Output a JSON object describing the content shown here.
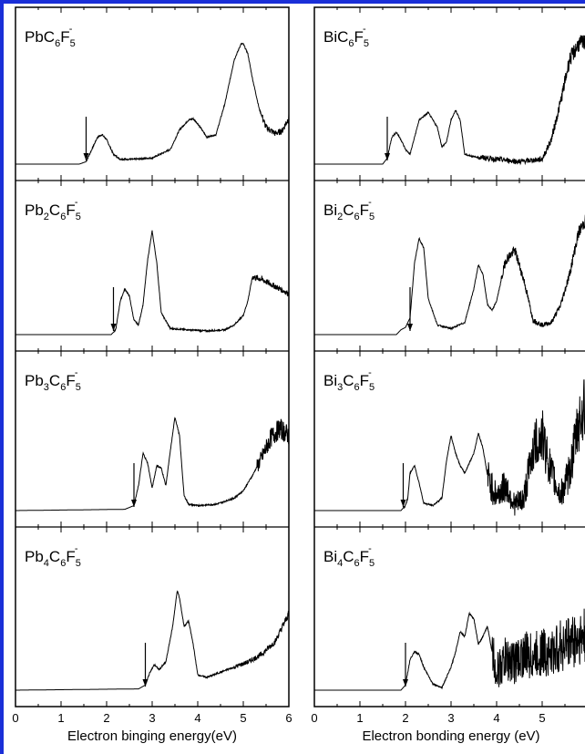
{
  "chart_data": [
    {
      "type": "line",
      "panel": "left",
      "label": {
        "base": "Pb",
        "n": "",
        "c": "6",
        "f": "5"
      },
      "x": [
        0,
        1.4,
        1.55,
        1.7,
        1.8,
        1.9,
        2.0,
        2.15,
        2.3,
        2.6,
        3.0,
        3.4,
        3.6,
        3.8,
        3.9,
        4.0,
        4.2,
        4.4,
        4.6,
        4.8,
        4.95,
        5.0,
        5.1,
        5.2,
        5.35,
        5.5,
        5.7,
        5.85,
        6.0
      ],
      "y": [
        0.0,
        0.0,
        0.02,
        0.14,
        0.22,
        0.24,
        0.2,
        0.08,
        0.04,
        0.04,
        0.05,
        0.12,
        0.28,
        0.36,
        0.37,
        0.33,
        0.22,
        0.24,
        0.5,
        0.85,
        0.98,
        0.98,
        0.9,
        0.7,
        0.45,
        0.3,
        0.25,
        0.27,
        0.38
      ],
      "threshold": 1.55,
      "noise_from": 5.4,
      "noise_amp": 0.04
    },
    {
      "type": "line",
      "panel": "left",
      "label": {
        "base": "Pb",
        "n": "2",
        "c": "6",
        "f": "5"
      },
      "x": [
        0,
        2.1,
        2.2,
        2.3,
        2.4,
        2.5,
        2.6,
        2.7,
        2.8,
        2.9,
        3.0,
        3.1,
        3.2,
        3.4,
        3.8,
        4.2,
        4.6,
        4.8,
        5.0,
        5.1,
        5.2,
        5.4,
        5.6,
        5.8,
        6.0
      ],
      "y": [
        0.0,
        0.0,
        0.04,
        0.28,
        0.38,
        0.32,
        0.12,
        0.08,
        0.25,
        0.62,
        0.86,
        0.6,
        0.18,
        0.05,
        0.04,
        0.03,
        0.04,
        0.08,
        0.16,
        0.28,
        0.48,
        0.46,
        0.42,
        0.38,
        0.34
      ],
      "threshold": 2.15,
      "noise_from": 5.2,
      "noise_amp": 0.03
    },
    {
      "type": "line",
      "panel": "left",
      "label": {
        "base": "Pb",
        "n": "3",
        "c": "6",
        "f": "5"
      },
      "x": [
        0,
        2.4,
        2.6,
        2.7,
        2.8,
        2.9,
        3.0,
        3.1,
        3.2,
        3.3,
        3.4,
        3.5,
        3.6,
        3.7,
        3.8,
        4.0,
        4.4,
        4.8,
        5.0,
        5.2,
        5.4,
        5.6,
        5.8,
        6.0
      ],
      "y": [
        0.0,
        0.01,
        0.04,
        0.2,
        0.46,
        0.38,
        0.18,
        0.36,
        0.34,
        0.2,
        0.48,
        0.75,
        0.6,
        0.12,
        0.05,
        0.04,
        0.05,
        0.1,
        0.16,
        0.28,
        0.42,
        0.58,
        0.66,
        0.6
      ],
      "threshold": 2.6,
      "noise_from": 5.3,
      "noise_amp": 0.08
    },
    {
      "type": "line",
      "panel": "left",
      "label": {
        "base": "Pb",
        "n": "4",
        "c": "6",
        "f": "5"
      },
      "x": [
        0,
        2.7,
        2.85,
        2.95,
        3.05,
        3.15,
        3.3,
        3.45,
        3.55,
        3.6,
        3.7,
        3.8,
        3.9,
        4.0,
        4.2,
        4.5,
        4.8,
        5.1,
        5.4,
        5.7,
        6.0
      ],
      "y": [
        0.0,
        0.01,
        0.04,
        0.14,
        0.2,
        0.16,
        0.22,
        0.5,
        0.78,
        0.72,
        0.5,
        0.54,
        0.36,
        0.12,
        0.1,
        0.14,
        0.18,
        0.22,
        0.28,
        0.38,
        0.6
      ],
      "threshold": 2.85,
      "noise_from": 4.8,
      "noise_amp": 0.03
    },
    {
      "type": "line",
      "panel": "right",
      "label": {
        "base": "Bi",
        "n": "",
        "c": "6",
        "f": "5"
      },
      "x": [
        0,
        1.5,
        1.6,
        1.7,
        1.8,
        1.9,
        2.0,
        2.1,
        2.3,
        2.5,
        2.7,
        2.8,
        2.9,
        3.0,
        3.1,
        3.2,
        3.3,
        3.5,
        4.0,
        4.5,
        5.0,
        5.2,
        5.4,
        5.6,
        5.8,
        6.0
      ],
      "y": [
        0.0,
        0.0,
        0.05,
        0.22,
        0.26,
        0.2,
        0.12,
        0.08,
        0.36,
        0.42,
        0.3,
        0.14,
        0.18,
        0.36,
        0.44,
        0.36,
        0.08,
        0.06,
        0.04,
        0.02,
        0.04,
        0.2,
        0.5,
        0.85,
        0.98,
        1.0
      ],
      "threshold": 1.6,
      "noise_from": 3.6,
      "noise_amp": 0.05
    },
    {
      "type": "line",
      "panel": "right",
      "label": {
        "base": "Bi",
        "n": "2",
        "c": "6",
        "f": "5"
      },
      "x": [
        0,
        1.8,
        1.9,
        2.0,
        2.1,
        2.2,
        2.3,
        2.4,
        2.5,
        2.7,
        3.0,
        3.3,
        3.5,
        3.6,
        3.7,
        3.8,
        3.9,
        4.0,
        4.2,
        4.4,
        4.6,
        4.8,
        5.0,
        5.2,
        5.4,
        5.6,
        5.8,
        6.0
      ],
      "y": [
        0.0,
        0.0,
        0.04,
        0.06,
        0.14,
        0.6,
        0.8,
        0.72,
        0.3,
        0.08,
        0.05,
        0.1,
        0.38,
        0.58,
        0.5,
        0.25,
        0.2,
        0.28,
        0.62,
        0.7,
        0.45,
        0.12,
        0.08,
        0.1,
        0.24,
        0.5,
        0.85,
        0.98
      ],
      "threshold": 2.1,
      "noise_from": 4.1,
      "noise_amp": 0.04
    },
    {
      "type": "line",
      "panel": "right",
      "label": {
        "base": "Bi",
        "n": "3",
        "c": "6",
        "f": "5"
      },
      "x": [
        0,
        1.9,
        2.0,
        2.05,
        2.1,
        2.2,
        2.3,
        2.4,
        2.6,
        2.8,
        2.9,
        3.0,
        3.1,
        3.2,
        3.3,
        3.5,
        3.6,
        3.7,
        3.8,
        3.9,
        4.0,
        4.2,
        4.4,
        4.6,
        4.8,
        5.0,
        5.2,
        5.4,
        5.6,
        5.8,
        6.0
      ],
      "y": [
        0.0,
        0.0,
        0.04,
        0.1,
        0.3,
        0.36,
        0.22,
        0.06,
        0.04,
        0.1,
        0.4,
        0.6,
        0.46,
        0.36,
        0.3,
        0.46,
        0.62,
        0.5,
        0.28,
        0.18,
        0.12,
        0.2,
        0.04,
        0.1,
        0.5,
        0.6,
        0.3,
        0.12,
        0.3,
        0.7,
        0.9
      ],
      "threshold": 1.95,
      "noise_from": 3.8,
      "noise_amp": 0.22
    },
    {
      "type": "line",
      "panel": "right",
      "label": {
        "base": "Bi",
        "n": "4",
        "c": "6",
        "f": "5"
      },
      "x": [
        0,
        1.9,
        2.0,
        2.1,
        2.2,
        2.3,
        2.4,
        2.6,
        2.8,
        3.0,
        3.1,
        3.2,
        3.3,
        3.4,
        3.5,
        3.6,
        3.7,
        3.8,
        3.9,
        4.0,
        4.2,
        4.4,
        4.6,
        4.8,
        5.0,
        5.2,
        5.4,
        5.6,
        5.8,
        6.0
      ],
      "y": [
        0.0,
        0.0,
        0.04,
        0.24,
        0.3,
        0.28,
        0.18,
        0.05,
        0.02,
        0.18,
        0.3,
        0.46,
        0.42,
        0.6,
        0.56,
        0.36,
        0.42,
        0.5,
        0.3,
        0.14,
        0.24,
        0.22,
        0.28,
        0.26,
        0.3,
        0.28,
        0.34,
        0.38,
        0.4,
        0.42
      ],
      "threshold": 2.0,
      "noise_from": 3.9,
      "noise_amp": 0.28
    }
  ],
  "axes": {
    "left": {
      "xlim": [
        0,
        6
      ],
      "ticks": [
        "0",
        "1",
        "2",
        "3",
        "4",
        "5",
        "6"
      ],
      "xlabel": "Electron binging energy(eV)"
    },
    "right": {
      "xlim": [
        0,
        6
      ],
      "ticks": [
        "0",
        "1",
        "2",
        "3",
        "4",
        "5"
      ],
      "xlabel": "Electron bonding energy (eV)"
    }
  },
  "colors": {
    "frame": "#1a2fd8",
    "line": "#000000"
  }
}
